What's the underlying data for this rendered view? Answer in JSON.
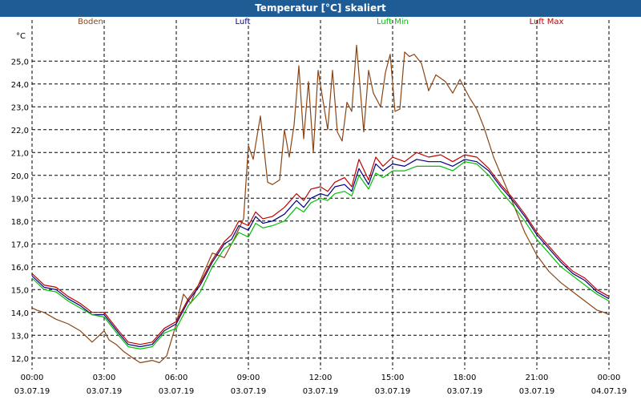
{
  "window": {
    "title": "Temperatur [°C] skaliert"
  },
  "chart_data": {
    "type": "line",
    "title": "Temperatur [°C] skaliert",
    "ylabel": "°C",
    "xlabel": "",
    "ylim": [
      11.5,
      26.8
    ],
    "xlim": [
      0,
      24
    ],
    "grid": true,
    "legend_position": "top",
    "y_ticks": [
      12.0,
      13.0,
      14.0,
      15.0,
      16.0,
      17.0,
      18.0,
      19.0,
      20.0,
      21.0,
      22.0,
      23.0,
      24.0,
      25.0
    ],
    "y_tick_labels": [
      "12,0",
      "13,0",
      "14,0",
      "15,0",
      "16,0",
      "17,0",
      "18,0",
      "19,0",
      "20,0",
      "21,0",
      "22,0",
      "23,0",
      "24,0",
      "25,0"
    ],
    "x_ticks": [
      0,
      3,
      6,
      9,
      12,
      15,
      18,
      21,
      24
    ],
    "x_tick_time_labels": [
      "00:00",
      "03:00",
      "06:00",
      "09:00",
      "12:00",
      "15:00",
      "18:00",
      "21:00",
      "00:00"
    ],
    "x_tick_date_labels": [
      "03.07.19",
      "03.07.19",
      "03.07.19",
      "03.07.19",
      "03.07.19",
      "03.07.19",
      "03.07.19",
      "03.07.19",
      "04.07.19"
    ],
    "series": [
      {
        "name": "Boden",
        "color": "#8b4513",
        "x": [
          0,
          0.2,
          0.5,
          1,
          1.5,
          2,
          2.5,
          2.8,
          3,
          3.2,
          3.5,
          3.8,
          4.2,
          4.5,
          5,
          5.3,
          5.6,
          6,
          6.3,
          6.6,
          7,
          7.5,
          8,
          8.4,
          8.8,
          9,
          9.2,
          9.5,
          9.8,
          10,
          10.3,
          10.5,
          10.7,
          10.9,
          11.1,
          11.3,
          11.5,
          11.7,
          11.9,
          12.1,
          12.3,
          12.5,
          12.7,
          12.9,
          13.1,
          13.3,
          13.5,
          13.8,
          14,
          14.2,
          14.5,
          14.7,
          14.9,
          15.1,
          15.3,
          15.5,
          15.7,
          15.9,
          16.2,
          16.5,
          16.8,
          17.2,
          17.5,
          17.8,
          18,
          18.2,
          18.5,
          18.8,
          19.2,
          19.6,
          20,
          20.5,
          21,
          21.5,
          22,
          22.5,
          23,
          23.5,
          23.8,
          24
        ],
        "values": [
          14.2,
          14.1,
          14.0,
          13.7,
          13.5,
          13.2,
          12.7,
          13.0,
          13.2,
          12.8,
          12.6,
          12.3,
          12.0,
          11.8,
          11.9,
          11.8,
          12.1,
          13.5,
          14.8,
          14.4,
          15.4,
          16.6,
          16.4,
          17.2,
          18.1,
          21.3,
          20.7,
          22.6,
          19.7,
          19.6,
          19.8,
          22.0,
          20.8,
          22.2,
          24.8,
          21.6,
          24.1,
          21.0,
          24.6,
          23.3,
          22.0,
          24.6,
          21.9,
          21.5,
          23.2,
          22.8,
          25.7,
          21.9,
          24.6,
          23.6,
          23.0,
          24.5,
          25.3,
          22.8,
          22.9,
          25.4,
          25.2,
          25.3,
          24.9,
          23.7,
          24.4,
          24.1,
          23.6,
          24.2,
          23.8,
          23.4,
          22.9,
          22.1,
          20.8,
          19.8,
          18.8,
          17.5,
          16.5,
          15.8,
          15.3,
          14.9,
          14.5,
          14.1,
          14.0,
          13.9
        ]
      },
      {
        "name": "Luft",
        "color": "#000080",
        "x": [
          0,
          0.5,
          1,
          1.5,
          2,
          2.5,
          3,
          3.3,
          3.6,
          4,
          4.5,
          5,
          5.5,
          6,
          6.5,
          7,
          7.5,
          8,
          8.3,
          8.6,
          9,
          9.3,
          9.6,
          10,
          10.5,
          11,
          11.3,
          11.6,
          12,
          12.3,
          12.6,
          13,
          13.3,
          13.6,
          14,
          14.3,
          14.6,
          15,
          15.5,
          16,
          16.5,
          17,
          17.5,
          18,
          18.5,
          19,
          19.5,
          20,
          20.5,
          21,
          21.5,
          22,
          22.5,
          23,
          23.5,
          24
        ],
        "values": [
          15.6,
          15.1,
          15.0,
          14.6,
          14.3,
          13.9,
          13.9,
          13.5,
          13.1,
          12.6,
          12.5,
          12.6,
          13.2,
          13.5,
          14.5,
          15.2,
          16.2,
          17.0,
          17.2,
          17.8,
          17.6,
          18.2,
          17.9,
          18.0,
          18.3,
          18.9,
          18.6,
          19.0,
          19.2,
          19.1,
          19.5,
          19.6,
          19.3,
          20.3,
          19.6,
          20.5,
          20.2,
          20.5,
          20.4,
          20.7,
          20.6,
          20.6,
          20.4,
          20.7,
          20.6,
          20.2,
          19.5,
          18.9,
          18.2,
          17.4,
          16.8,
          16.2,
          15.7,
          15.4,
          14.9,
          14.6
        ]
      },
      {
        "name": "Luft Min",
        "color": "#00c000",
        "x": [
          0,
          0.5,
          1,
          1.5,
          2,
          2.5,
          3,
          3.3,
          3.6,
          4,
          4.5,
          5,
          5.5,
          6,
          6.5,
          7,
          7.5,
          8,
          8.3,
          8.6,
          9,
          9.3,
          9.6,
          10,
          10.5,
          11,
          11.3,
          11.6,
          12,
          12.3,
          12.6,
          13,
          13.3,
          13.6,
          14,
          14.3,
          14.6,
          15,
          15.5,
          16,
          16.5,
          17,
          17.5,
          18,
          18.5,
          19,
          19.5,
          20,
          20.5,
          21,
          21.5,
          22,
          22.5,
          23,
          23.5,
          24
        ],
        "values": [
          15.5,
          15.0,
          14.9,
          14.5,
          14.2,
          13.9,
          13.8,
          13.4,
          13.0,
          12.5,
          12.4,
          12.5,
          13.1,
          13.3,
          14.3,
          14.9,
          16.0,
          16.8,
          17.0,
          17.5,
          17.3,
          17.9,
          17.7,
          17.8,
          18.0,
          18.6,
          18.4,
          18.8,
          19.0,
          18.9,
          19.2,
          19.3,
          19.1,
          20.0,
          19.4,
          20.1,
          19.9,
          20.2,
          20.2,
          20.4,
          20.4,
          20.4,
          20.2,
          20.6,
          20.5,
          20.0,
          19.3,
          18.7,
          18.0,
          17.2,
          16.6,
          16.0,
          15.6,
          15.2,
          14.8,
          14.5
        ]
      },
      {
        "name": "Luft Max",
        "color": "#c00000",
        "x": [
          0,
          0.5,
          1,
          1.5,
          2,
          2.5,
          3,
          3.3,
          3.6,
          4,
          4.5,
          5,
          5.5,
          6,
          6.5,
          7,
          7.5,
          8,
          8.3,
          8.6,
          9,
          9.3,
          9.6,
          10,
          10.5,
          11,
          11.3,
          11.6,
          12,
          12.3,
          12.6,
          13,
          13.3,
          13.6,
          14,
          14.3,
          14.6,
          15,
          15.5,
          16,
          16.5,
          17,
          17.5,
          18,
          18.5,
          19,
          19.5,
          20,
          20.5,
          21,
          21.5,
          22,
          22.5,
          23,
          23.5,
          24
        ],
        "values": [
          15.7,
          15.2,
          15.1,
          14.7,
          14.4,
          14.0,
          14.0,
          13.6,
          13.2,
          12.7,
          12.6,
          12.7,
          13.3,
          13.6,
          14.6,
          15.3,
          16.3,
          17.1,
          17.4,
          18.0,
          17.8,
          18.4,
          18.1,
          18.2,
          18.6,
          19.2,
          18.9,
          19.4,
          19.5,
          19.3,
          19.7,
          19.9,
          19.5,
          20.7,
          19.8,
          20.8,
          20.4,
          20.8,
          20.6,
          21.0,
          20.8,
          20.9,
          20.6,
          20.9,
          20.8,
          20.3,
          19.6,
          19.0,
          18.3,
          17.5,
          16.9,
          16.3,
          15.8,
          15.5,
          15.0,
          14.7
        ]
      }
    ]
  }
}
